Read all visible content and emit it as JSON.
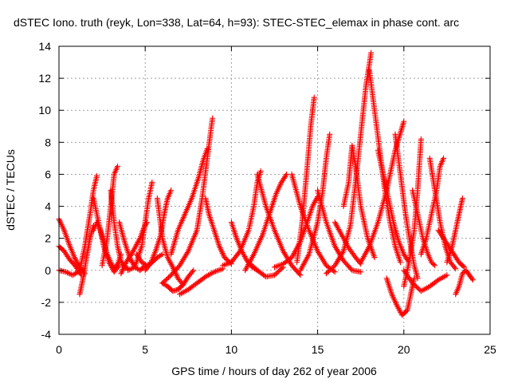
{
  "chart_data": {
    "type": "scatter",
    "title": "dSTEC Iono. truth (reyk, Lon=338, Lat=64, h=93): STEC-STEC_elemax in phase cont. arc",
    "xlabel": "GPS time / hours of day 262 of year 2006",
    "ylabel": "dSTEC  / TECUs",
    "xlim": [
      0,
      25
    ],
    "ylim": [
      -4,
      14
    ],
    "xticks": [
      "0",
      "5",
      "10",
      "15",
      "20",
      "25"
    ],
    "yticks": [
      "-4",
      "-2",
      "0",
      "2",
      "4",
      "6",
      "8",
      "10",
      "12",
      "14"
    ],
    "grid": true,
    "marker": "+",
    "color": "#ff0000",
    "series": [
      {
        "x": [
          0.0,
          0.3,
          0.6,
          0.9,
          1.2,
          1.5
        ],
        "y": [
          3.2,
          2.5,
          1.6,
          0.8,
          0.2,
          -0.2
        ]
      },
      {
        "x": [
          0.0,
          0.3,
          0.6,
          1.0,
          1.3
        ],
        "y": [
          1.5,
          1.2,
          0.7,
          0.2,
          -0.3
        ]
      },
      {
        "x": [
          0.0,
          0.4,
          0.8,
          1.1,
          1.4
        ],
        "y": [
          0.0,
          -0.1,
          -0.3,
          -0.1,
          0.1
        ]
      },
      {
        "x": [
          1.2,
          1.4,
          1.6,
          1.8,
          2.0
        ],
        "y": [
          -1.5,
          -0.5,
          0.8,
          2.0,
          2.8
        ]
      },
      {
        "x": [
          1.2,
          1.5,
          1.8,
          2.0,
          2.2
        ],
        "y": [
          0.0,
          1.5,
          3.5,
          5.0,
          5.9
        ]
      },
      {
        "x": [
          2.0,
          2.2,
          2.4,
          2.6,
          2.8,
          3.0,
          3.2,
          3.4,
          3.6
        ],
        "y": [
          2.5,
          3.0,
          2.5,
          1.8,
          1.0,
          0.5,
          0.1,
          0.4,
          1.0
        ]
      },
      {
        "x": [
          2.0,
          2.3,
          2.6,
          2.9,
          3.2,
          3.5
        ],
        "y": [
          4.5,
          3.0,
          1.5,
          0.5,
          -0.1,
          0.3
        ]
      },
      {
        "x": [
          2.5,
          2.8,
          3.0,
          3.2,
          3.4
        ],
        "y": [
          0.3,
          2.0,
          4.0,
          6.0,
          6.5
        ]
      },
      {
        "x": [
          3.0,
          3.2,
          3.4,
          3.6,
          3.8,
          4.0
        ],
        "y": [
          5.0,
          3.0,
          1.5,
          0.6,
          0.2,
          0.1
        ]
      },
      {
        "x": [
          3.5,
          3.8,
          4.1,
          4.4,
          4.7,
          5.0
        ],
        "y": [
          3.0,
          1.8,
          0.8,
          0.2,
          0.0,
          0.3
        ]
      },
      {
        "x": [
          3.6,
          3.9,
          4.2,
          4.5,
          4.7,
          4.9,
          5.1
        ],
        "y": [
          -0.2,
          0.5,
          1.0,
          1.6,
          2.0,
          2.6,
          3.0
        ]
      },
      {
        "x": [
          4.0,
          4.4,
          4.8,
          5.0,
          5.2,
          5.4
        ],
        "y": [
          0.0,
          0.2,
          1.5,
          3.0,
          4.5,
          5.5
        ]
      },
      {
        "x": [
          4.5,
          4.8,
          5.1,
          5.4,
          5.7,
          6.0
        ],
        "y": [
          1.0,
          0.5,
          0.3,
          0.5,
          0.8,
          1.0
        ]
      },
      {
        "x": [
          5.0,
          5.3,
          5.6,
          5.9,
          6.1,
          6.3,
          6.5
        ],
        "y": [
          0.0,
          0.4,
          1.2,
          2.2,
          3.5,
          4.5,
          5.0
        ]
      },
      {
        "x": [
          5.7,
          6.0,
          6.3,
          6.6,
          6.9,
          7.2
        ],
        "y": [
          4.5,
          2.0,
          0.8,
          0.2,
          -0.5,
          -0.9
        ]
      },
      {
        "x": [
          6.0,
          6.3,
          6.6,
          6.9,
          7.2,
          7.5,
          7.8
        ],
        "y": [
          -0.8,
          -1.0,
          -1.3,
          -1.2,
          -0.9,
          -0.4,
          0.0
        ]
      },
      {
        "x": [
          6.5,
          6.9,
          7.3,
          7.7,
          8.1,
          8.4,
          8.6
        ],
        "y": [
          1.0,
          2.5,
          3.5,
          4.5,
          5.8,
          7.0,
          7.6
        ]
      },
      {
        "x": [
          6.0,
          6.5,
          7.0,
          7.5,
          8.0,
          8.3,
          8.6,
          8.9
        ],
        "y": [
          -0.8,
          -0.3,
          0.3,
          1.2,
          2.5,
          4.5,
          7.0,
          9.5
        ]
      },
      {
        "x": [
          7.0,
          7.5,
          8.0,
          8.5,
          9.0,
          9.5
        ],
        "y": [
          -1.5,
          -1.2,
          -0.8,
          -0.4,
          -0.1,
          0.1
        ]
      },
      {
        "x": [
          8.5,
          8.7,
          9.0,
          9.3,
          9.6,
          10.0
        ],
        "y": [
          4.5,
          3.5,
          2.5,
          1.5,
          0.8,
          0.4
        ]
      },
      {
        "x": [
          9.5,
          10.0,
          10.5,
          11.0,
          11.3,
          11.5,
          11.7
        ],
        "y": [
          0.3,
          0.5,
          1.2,
          2.5,
          4.0,
          5.5,
          6.2
        ]
      },
      {
        "x": [
          10.0,
          10.3,
          10.6,
          10.9,
          11.2,
          11.5
        ],
        "y": [
          3.0,
          2.0,
          1.2,
          0.6,
          0.2,
          0.0
        ]
      },
      {
        "x": [
          10.8,
          11.3,
          11.8,
          12.2,
          12.6,
          12.9,
          13.2
        ],
        "y": [
          0.0,
          1.0,
          2.2,
          3.5,
          4.8,
          5.5,
          6.0
        ]
      },
      {
        "x": [
          11.5,
          12.0,
          12.5,
          13.0,
          13.5,
          14.0
        ],
        "y": [
          6.0,
          4.0,
          2.5,
          1.2,
          0.3,
          -0.3
        ]
      },
      {
        "x": [
          11.0,
          11.5,
          12.0,
          12.5,
          13.0
        ],
        "y": [
          0.5,
          0.0,
          -0.4,
          -0.3,
          0.2
        ]
      },
      {
        "x": [
          12.5,
          13.0,
          13.5,
          14.0,
          14.4,
          14.7,
          15.0
        ],
        "y": [
          0.2,
          0.4,
          0.8,
          1.8,
          3.0,
          4.0,
          4.6
        ]
      },
      {
        "x": [
          13.5,
          14.0,
          14.5,
          15.0,
          15.5,
          16.0
        ],
        "y": [
          6.0,
          4.0,
          2.5,
          1.2,
          0.3,
          -0.1
        ]
      },
      {
        "x": [
          13.8,
          14.1,
          14.4,
          14.6,
          14.8
        ],
        "y": [
          0.5,
          3.0,
          6.5,
          9.0,
          10.8
        ]
      },
      {
        "x": [
          14.0,
          14.5,
          15.0,
          15.3,
          15.5,
          15.7
        ],
        "y": [
          0.0,
          1.0,
          3.0,
          5.0,
          7.0,
          8.5
        ]
      },
      {
        "x": [
          15.0,
          15.5,
          16.0,
          16.5,
          17.0,
          17.5
        ],
        "y": [
          5.0,
          3.0,
          1.5,
          0.6,
          0.0,
          -0.1
        ]
      },
      {
        "x": [
          16.0,
          16.4,
          16.8,
          17.2,
          17.5
        ],
        "y": [
          3.0,
          2.2,
          1.4,
          0.8,
          0.4
        ]
      },
      {
        "x": [
          15.5,
          16.0,
          16.5,
          16.9,
          17.2,
          17.5,
          17.8,
          18.1
        ],
        "y": [
          -0.2,
          0.3,
          1.2,
          2.8,
          5.5,
          8.5,
          11.5,
          13.6
        ]
      },
      {
        "x": [
          16.5,
          16.8,
          17.0,
          17.2,
          17.5,
          17.9,
          18.3
        ],
        "y": [
          4.0,
          5.5,
          7.8,
          6.5,
          4.0,
          2.0,
          0.8
        ]
      },
      {
        "x": [
          17.5,
          18.0,
          18.5,
          19.0,
          19.5,
          20.0
        ],
        "y": [
          0.5,
          1.5,
          3.0,
          5.0,
          7.5,
          9.3
        ]
      },
      {
        "x": [
          18.0,
          18.3,
          18.6,
          18.9,
          19.2,
          19.5,
          19.8
        ],
        "y": [
          12.5,
          10.0,
          7.5,
          5.0,
          3.0,
          1.5,
          0.5
        ]
      },
      {
        "x": [
          18.5,
          18.8,
          19.1,
          19.4,
          19.7,
          20.0,
          20.3
        ],
        "y": [
          7.5,
          6.0,
          4.5,
          3.0,
          1.8,
          1.0,
          0.5
        ]
      },
      {
        "x": [
          19.0,
          19.3,
          19.6,
          19.9,
          20.2,
          20.4,
          20.6
        ],
        "y": [
          -0.5,
          -1.5,
          -2.2,
          -2.8,
          -2.5,
          -1.5,
          -0.5
        ]
      },
      {
        "x": [
          19.5,
          19.8,
          20.1,
          20.4,
          20.6,
          20.8
        ],
        "y": [
          8.5,
          6.0,
          3.5,
          1.5,
          0.3,
          -0.5
        ]
      },
      {
        "x": [
          20.0,
          20.3,
          20.6,
          20.8,
          21.0
        ],
        "y": [
          -1.0,
          0.5,
          2.5,
          5.0,
          8.2
        ]
      },
      {
        "x": [
          20.5,
          20.8,
          21.1,
          21.4,
          21.6,
          21.8
        ],
        "y": [
          5.0,
          3.5,
          2.0,
          1.0,
          0.5,
          0.3
        ]
      },
      {
        "x": [
          20.0,
          20.5,
          21.0,
          21.5,
          22.0,
          22.5
        ],
        "y": [
          0.0,
          -0.8,
          -1.3,
          -1.0,
          -0.6,
          -0.3
        ]
      },
      {
        "x": [
          21.0,
          21.3,
          21.6,
          21.9,
          22.1,
          22.3
        ],
        "y": [
          1.0,
          2.0,
          3.5,
          5.0,
          6.5,
          7.0
        ]
      },
      {
        "x": [
          21.5,
          21.8,
          22.1,
          22.4,
          22.7,
          23.0
        ],
        "y": [
          7.0,
          5.0,
          3.0,
          1.5,
          0.5,
          0.1
        ]
      },
      {
        "x": [
          22.0,
          22.3,
          22.6,
          22.9,
          23.2,
          23.5
        ],
        "y": [
          2.5,
          2.0,
          1.5,
          1.0,
          0.5,
          0.2
        ]
      },
      {
        "x": [
          22.5,
          22.8,
          23.0,
          23.2,
          23.4
        ],
        "y": [
          0.5,
          1.5,
          2.5,
          3.5,
          4.5
        ]
      },
      {
        "x": [
          23.0,
          23.2,
          23.4,
          23.6,
          23.8,
          24.0
        ],
        "y": [
          -1.5,
          -1.0,
          -0.2,
          0.0,
          -0.3,
          -0.6
        ]
      }
    ]
  }
}
